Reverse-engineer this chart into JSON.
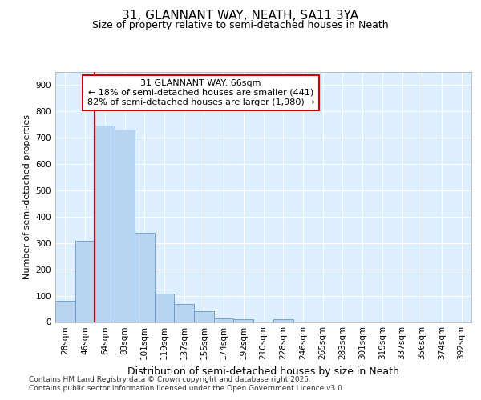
{
  "title": "31, GLANNANT WAY, NEATH, SA11 3YA",
  "subtitle": "Size of property relative to semi-detached houses in Neath",
  "xlabel": "Distribution of semi-detached houses by size in Neath",
  "ylabel": "Number of semi-detached properties",
  "categories": [
    "28sqm",
    "46sqm",
    "64sqm",
    "83sqm",
    "101sqm",
    "119sqm",
    "137sqm",
    "155sqm",
    "174sqm",
    "192sqm",
    "210sqm",
    "228sqm",
    "246sqm",
    "265sqm",
    "283sqm",
    "301sqm",
    "319sqm",
    "337sqm",
    "356sqm",
    "374sqm",
    "392sqm"
  ],
  "values": [
    80,
    308,
    745,
    730,
    340,
    108,
    68,
    40,
    15,
    10,
    0,
    10,
    0,
    0,
    0,
    0,
    0,
    0,
    0,
    0,
    0
  ],
  "bar_color": "#b8d4ee",
  "bar_edge_color": "#6699cc",
  "property_line_x": 2.0,
  "property_line_color": "#cc0000",
  "annotation_text": "31 GLANNANT WAY: 66sqm\n← 18% of semi-detached houses are smaller (441)\n82% of semi-detached houses are larger (1,980) →",
  "annotation_box_color": "#cc0000",
  "ylim": [
    0,
    950
  ],
  "yticks": [
    0,
    100,
    200,
    300,
    400,
    500,
    600,
    700,
    800,
    900
  ],
  "plot_bg_color": "#ddeeff",
  "footer_line1": "Contains HM Land Registry data © Crown copyright and database right 2025.",
  "footer_line2": "Contains public sector information licensed under the Open Government Licence v3.0.",
  "title_fontsize": 11,
  "subtitle_fontsize": 9,
  "axis_fontsize": 8,
  "tick_fontsize": 7.5,
  "footer_fontsize": 6.5,
  "annotation_fontsize": 8
}
